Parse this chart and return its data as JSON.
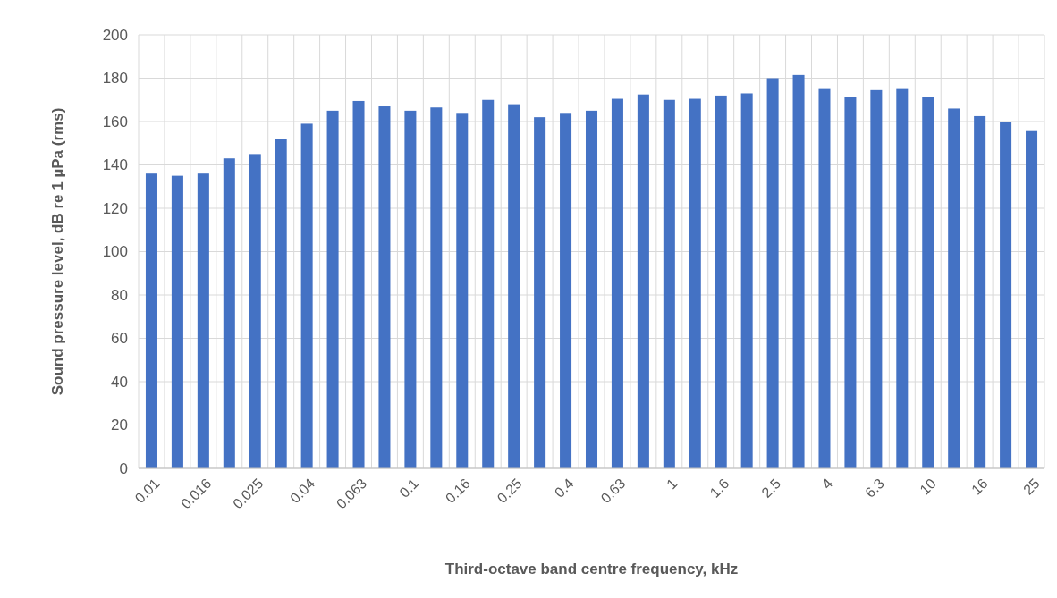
{
  "chart_data": {
    "type": "bar",
    "xlabel": "Third-octave band centre frequency, kHz",
    "ylabel": "Sound pressure level, dB re 1 µPa (rms)",
    "categories": [
      "0.01",
      null,
      "0.016",
      null,
      "0.025",
      null,
      "0.04",
      null,
      "0.063",
      null,
      "0.1",
      null,
      "0.16",
      null,
      "0.25",
      null,
      "0.4",
      null,
      "0.63",
      null,
      "1",
      null,
      "1.6",
      null,
      "2.5",
      null,
      "4",
      null,
      "6.3",
      null,
      "10",
      null,
      "16",
      null,
      "25"
    ],
    "values": [
      136,
      135,
      136,
      143,
      145,
      152,
      159,
      165,
      169.5,
      167,
      165,
      166.5,
      164,
      170,
      168,
      162,
      164,
      165,
      170.5,
      172.5,
      170,
      170.5,
      172,
      173,
      180,
      181.5,
      175,
      171.5,
      174.5,
      175,
      171.5,
      166,
      162.5,
      160,
      156
    ],
    "color": "#4472c4",
    "ylim": [
      0,
      200
    ],
    "yticks": [
      0,
      20,
      40,
      60,
      80,
      100,
      120,
      140,
      160,
      180,
      200
    ],
    "grid": true
  }
}
